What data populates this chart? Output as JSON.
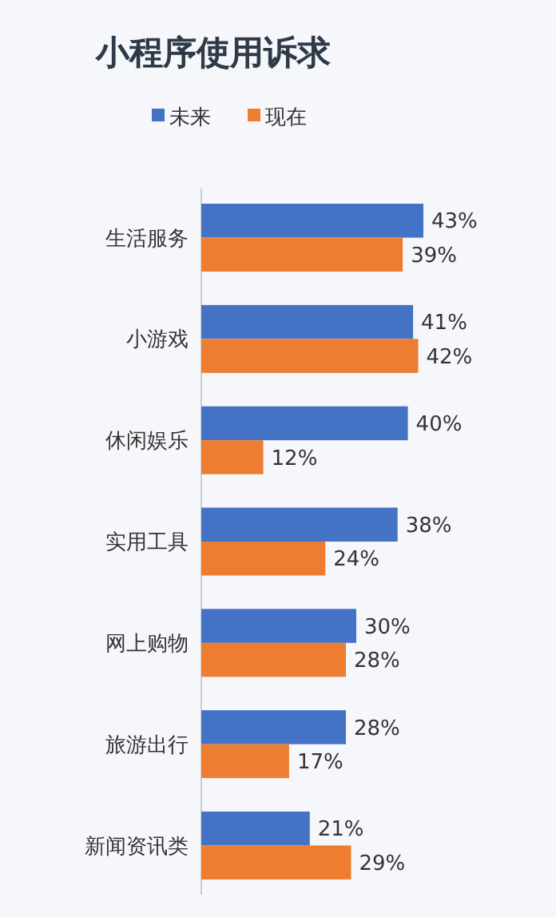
{
  "chart_data": {
    "type": "bar",
    "orientation": "horizontal",
    "title": "小程序使用诉求",
    "categories": [
      "生活服务",
      "小游戏",
      "休闲娱乐",
      "实用工具",
      "网上购物",
      "旅游出行",
      "新闻资讯类"
    ],
    "series": [
      {
        "name": "未来",
        "color": "#4472c4",
        "values": [
          43,
          41,
          40,
          38,
          30,
          28,
          21
        ],
        "value_labels": [
          "43%",
          "41%",
          "40%",
          "38%",
          "30%",
          "28%",
          "21%"
        ]
      },
      {
        "name": "现在",
        "color": "#ed7d31",
        "values": [
          39,
          42,
          12,
          24,
          28,
          17,
          29
        ],
        "value_labels": [
          "39%",
          "42%",
          "12%",
          "24%",
          "28%",
          "17%",
          "29%"
        ]
      }
    ],
    "legend": "top"
  }
}
